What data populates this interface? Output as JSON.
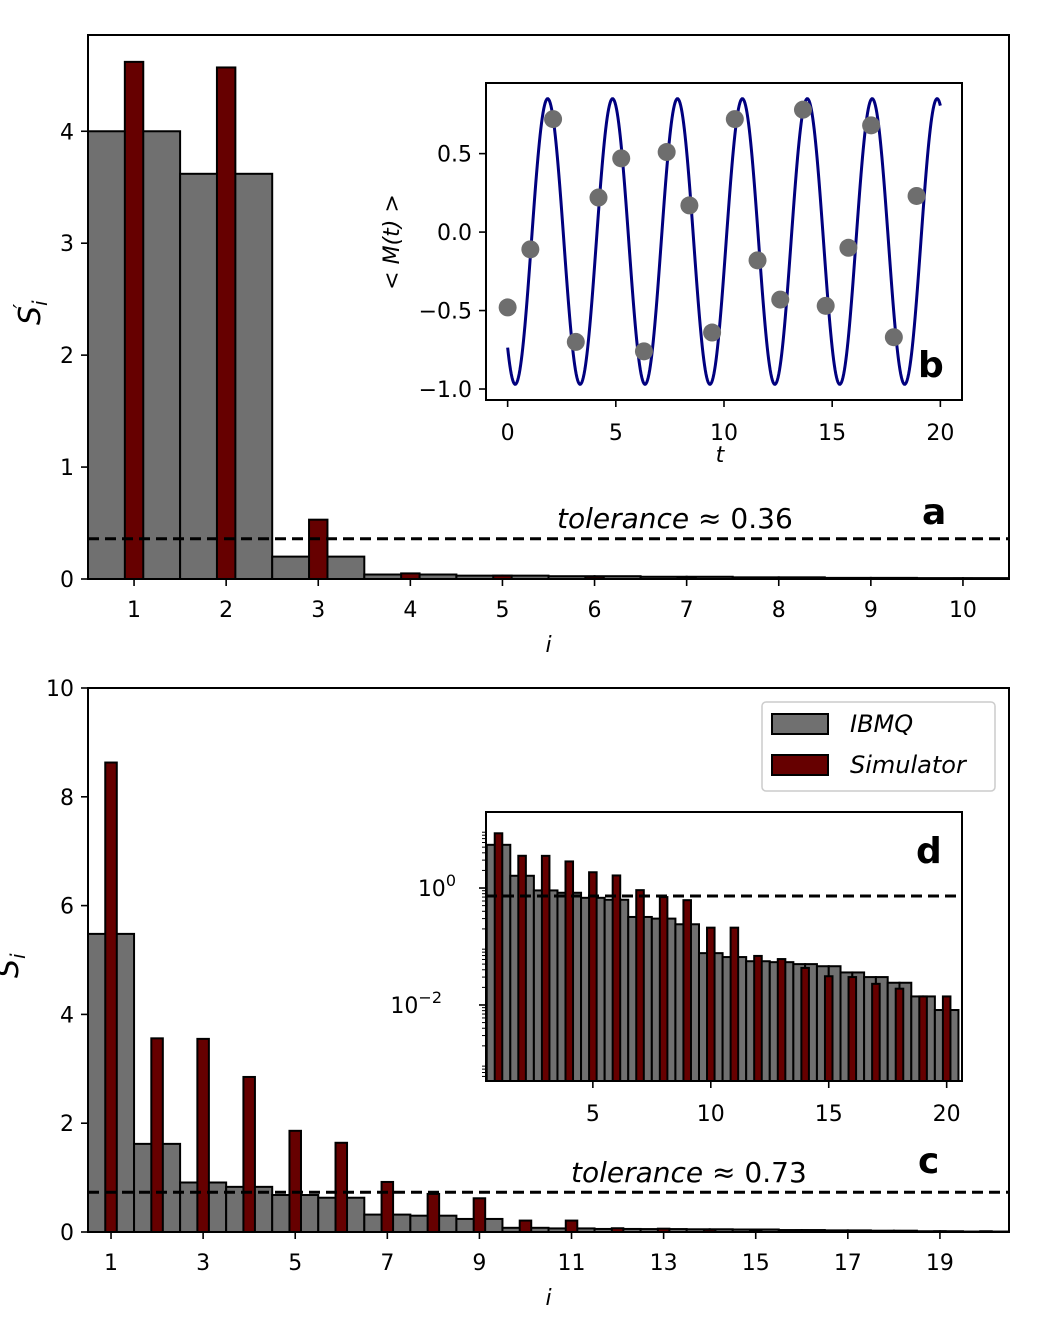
{
  "colors": {
    "ibmq": "#707070",
    "simulator": "#660000",
    "curve": "#00007f",
    "points": "#6e6e6e",
    "edge": "#000000"
  },
  "chart_data": [
    {
      "id": "a",
      "type": "bar",
      "panel_letter": "a",
      "xlabel": "i",
      "ylabel": "S'_i",
      "ylabel_main": "S",
      "ylabel_sub": "i",
      "ylabel_sup": "′",
      "xlim": [
        0.5,
        10.5
      ],
      "ylim": [
        0,
        4.86
      ],
      "xticks": [
        1,
        2,
        3,
        4,
        5,
        6,
        7,
        8,
        9,
        10
      ],
      "xtick_labels": [
        "1",
        "2",
        "3",
        "4",
        "5",
        "6",
        "7",
        "8",
        "9",
        "10"
      ],
      "yticks": [
        0,
        1,
        2,
        3,
        4
      ],
      "ytick_labels": [
        "0",
        "1",
        "2",
        "3",
        "4"
      ],
      "categories": [
        1,
        2,
        3,
        4,
        5,
        6,
        7,
        8,
        9,
        10
      ],
      "series": [
        {
          "name": "IBMQ",
          "bar_width": 1.0,
          "values": [
            4.0,
            3.62,
            0.2,
            0.04,
            0.03,
            0.025,
            0.02,
            0.015,
            0.01,
            0.008
          ]
        },
        {
          "name": "Simulator",
          "bar_width": 0.2,
          "values": [
            4.62,
            4.57,
            0.53,
            0.05,
            0.03,
            0.02,
            0.015,
            0.01,
            0.008,
            0.005
          ]
        }
      ],
      "tolerance": 0.36,
      "annotation": "tolerance ≈ 0.36",
      "annotation_italic": "tolerance",
      "annotation_rest": " ≈ 0.36"
    },
    {
      "id": "b",
      "type": "line",
      "panel_letter": "b",
      "inset_of": "a",
      "xlabel": "t",
      "ylabel": "< M(t) >",
      "xlim": [
        -1.0,
        21.0
      ],
      "ylim": [
        -1.07,
        0.95
      ],
      "xticks": [
        0,
        5,
        10,
        15,
        20
      ],
      "xtick_labels": [
        "0",
        "5",
        "10",
        "15",
        "20"
      ],
      "yticks": [
        0.5,
        0.0,
        -0.5,
        -1.0
      ],
      "ytick_labels": [
        "0.5",
        "0.0",
        "−0.5",
        "−1.0"
      ],
      "curve": {
        "name": "theory",
        "x_start": 0,
        "x_end": 20,
        "offset": -0.06,
        "amplitude": -0.91,
        "period": 3.0,
        "phase": 0.35
      },
      "points": {
        "name": "IBMQ",
        "x": [
          0,
          1.05,
          2.1,
          3.15,
          4.2,
          5.25,
          6.3,
          7.35,
          8.4,
          9.45,
          10.5,
          11.55,
          12.6,
          13.65,
          14.7,
          15.75,
          16.8,
          17.85,
          18.9
        ],
        "y": [
          -0.48,
          -0.11,
          0.72,
          -0.7,
          0.22,
          0.47,
          -0.76,
          0.51,
          0.17,
          -0.64,
          0.72,
          -0.18,
          -0.43,
          0.78,
          -0.47,
          -0.1,
          0.68,
          -0.67,
          0.23
        ]
      }
    },
    {
      "id": "c",
      "type": "bar",
      "panel_letter": "c",
      "xlabel": "i",
      "ylabel": "S_i",
      "ylabel_main": "S",
      "ylabel_sub": "i",
      "xlim": [
        0.5,
        20.5
      ],
      "ylim": [
        0,
        10
      ],
      "xticks": [
        1,
        3,
        5,
        7,
        9,
        11,
        13,
        15,
        17,
        19
      ],
      "xtick_labels": [
        "1",
        "3",
        "5",
        "7",
        "9",
        "11",
        "13",
        "15",
        "17",
        "19"
      ],
      "yticks": [
        0,
        2,
        4,
        6,
        8,
        10
      ],
      "ytick_labels": [
        "0",
        "2",
        "4",
        "6",
        "8",
        "10"
      ],
      "categories": [
        1,
        2,
        3,
        4,
        5,
        6,
        7,
        8,
        9,
        10,
        11,
        12,
        13,
        14,
        15,
        16,
        17,
        18,
        19,
        20
      ],
      "series": [
        {
          "name": "IBMQ",
          "bar_width": 1.0,
          "values": [
            5.48,
            1.62,
            0.91,
            0.83,
            0.68,
            0.63,
            0.32,
            0.3,
            0.24,
            0.077,
            0.066,
            0.056,
            0.054,
            0.05,
            0.046,
            0.036,
            0.03,
            0.024,
            0.014,
            0.0082
          ]
        },
        {
          "name": "Simulator",
          "bar_width": 0.25,
          "values": [
            8.63,
            3.56,
            3.55,
            2.85,
            1.86,
            1.64,
            0.92,
            0.7,
            0.62,
            0.21,
            0.21,
            0.069,
            0.061,
            0.043,
            0.031,
            0.03,
            0.023,
            0.019,
            0.014,
            0.014
          ]
        }
      ],
      "tolerance": 0.73,
      "annotation": "tolerance ≈ 0.73",
      "annotation_italic": "tolerance",
      "annotation_rest": " ≈ 0.73",
      "legend": {
        "position": "upper-right",
        "entries": [
          {
            "label": "IBMQ",
            "series": "IBMQ"
          },
          {
            "label": "Simulator",
            "series": "Simulator"
          }
        ]
      }
    },
    {
      "id": "d",
      "type": "bar",
      "panel_letter": "d",
      "inset_of": "c",
      "yscale": "log",
      "xlim": [
        0.47,
        20.65
      ],
      "ylim_log10": [
        -3.3,
        1.3
      ],
      "xticks": [
        5,
        10,
        15,
        20
      ],
      "xtick_labels": [
        "5",
        "10",
        "15",
        "20"
      ],
      "yticks_log10": [
        0,
        -2
      ],
      "ytick_labels": [
        "10^0",
        "10^-2"
      ],
      "ytick_label_base": "10",
      "ytick_label_exp": [
        "0",
        "−2"
      ],
      "categories": [
        1,
        2,
        3,
        4,
        5,
        6,
        7,
        8,
        9,
        10,
        11,
        12,
        13,
        14,
        15,
        16,
        17,
        18,
        19,
        20
      ],
      "series_ref": "c",
      "tolerance": 0.73
    }
  ]
}
